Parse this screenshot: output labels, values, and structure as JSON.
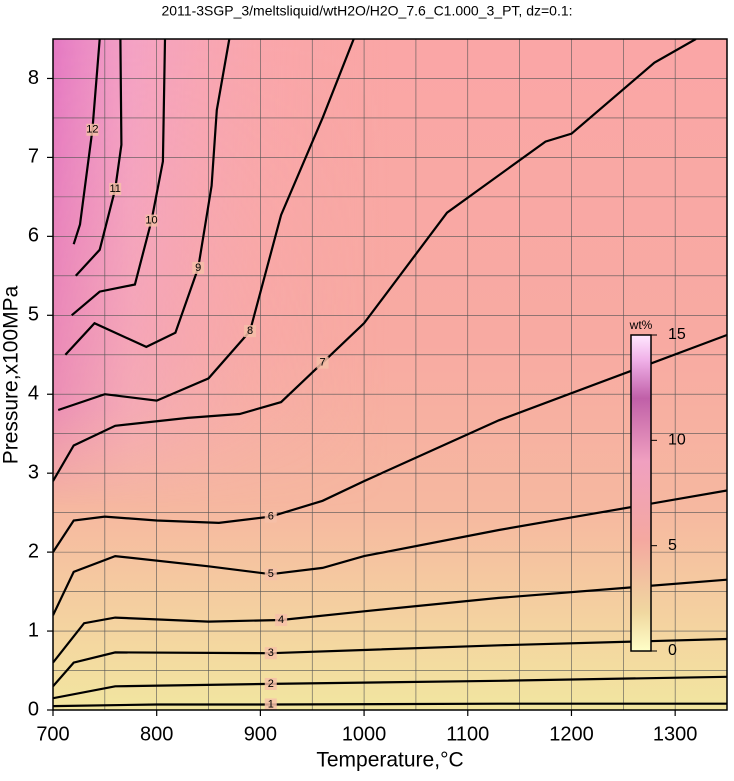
{
  "chart_data": {
    "type": "contour",
    "title": "2011-3SGP_3/meltsliquid/wtH2O/H2O_7.6_C1.000_3_PT, dz=0.1:",
    "x_label": "Temperature,°C",
    "y_label": "Pressure,x100MPa",
    "xlim": [
      700,
      1350
    ],
    "xticks": [
      700,
      800,
      900,
      1000,
      1100,
      1200,
      1300
    ],
    "ylim": [
      0,
      8.5
    ],
    "yticks": [
      0,
      1,
      2,
      3,
      4,
      5,
      6,
      7,
      8
    ],
    "xminorticks": [
      750,
      850,
      950,
      1050,
      1150,
      1250,
      1350
    ],
    "yminorticks": [
      0.5,
      1.5,
      2.5,
      3.5,
      4.5,
      5.5,
      6.5,
      7.5
    ],
    "grid": true,
    "contours": [
      {
        "level": 1,
        "x": [
          700,
          800,
          910,
          1130,
          1350
        ],
        "y": [
          0.05,
          0.07,
          0.07,
          0.08,
          0.08
        ]
      },
      {
        "level": 2,
        "x": [
          700,
          760,
          910,
          1130,
          1350
        ],
        "y": [
          0.15,
          0.3,
          0.33,
          0.37,
          0.42
        ]
      },
      {
        "level": 3,
        "x": [
          700,
          720,
          760,
          910,
          1130,
          1350
        ],
        "y": [
          0.3,
          0.6,
          0.73,
          0.72,
          0.82,
          0.9
        ]
      },
      {
        "level": 4,
        "x": [
          700,
          730,
          760,
          850,
          920,
          1000,
          1130,
          1350
        ],
        "y": [
          0.6,
          1.1,
          1.17,
          1.12,
          1.14,
          1.25,
          1.42,
          1.65
        ]
      },
      {
        "level": 5,
        "x": [
          700,
          720,
          760,
          850,
          910,
          960,
          1000,
          1130,
          1350
        ],
        "y": [
          1.2,
          1.75,
          1.95,
          1.82,
          1.72,
          1.8,
          1.95,
          2.28,
          2.78
        ]
      },
      {
        "level": 6,
        "x": [
          700,
          720,
          750,
          800,
          860,
          910,
          960,
          1000,
          1130,
          1350
        ],
        "y": [
          2.0,
          2.4,
          2.45,
          2.4,
          2.37,
          2.45,
          2.65,
          2.9,
          3.67,
          4.75
        ]
      },
      {
        "level": 7,
        "x": [
          700,
          720,
          760,
          830,
          880,
          920,
          960,
          1000,
          1080,
          1175,
          1200,
          1280,
          1320
        ],
        "y": [
          2.9,
          3.35,
          3.6,
          3.7,
          3.75,
          3.9,
          4.4,
          4.9,
          6.3,
          7.2,
          7.3,
          8.2,
          8.5
        ]
      },
      {
        "level": 8,
        "x": [
          705,
          750,
          800,
          850,
          890,
          920,
          960,
          990
        ],
        "y": [
          3.8,
          4.0,
          3.92,
          4.2,
          4.8,
          6.27,
          7.5,
          8.5
        ]
      },
      {
        "level": 9,
        "x": [
          712,
          740,
          790,
          818,
          840,
          853,
          858,
          870
        ],
        "y": [
          4.5,
          4.9,
          4.6,
          4.78,
          5.6,
          6.64,
          7.6,
          8.5
        ]
      },
      {
        "level": 10,
        "x": [
          718,
          745,
          779,
          795,
          806,
          808
        ],
        "y": [
          5.0,
          5.3,
          5.39,
          6.2,
          6.95,
          8.5
        ]
      },
      {
        "level": 11,
        "x": [
          722,
          745,
          760,
          766,
          765
        ],
        "y": [
          5.5,
          5.83,
          6.6,
          7.16,
          8.5
        ]
      },
      {
        "level": 12,
        "x": [
          720,
          726,
          738,
          745
        ],
        "y": [
          5.9,
          6.15,
          7.35,
          8.5
        ]
      }
    ],
    "colorbar": {
      "label": "wt%",
      "lim": [
        0,
        15
      ],
      "ticks": [
        0,
        5,
        10,
        15
      ]
    }
  }
}
